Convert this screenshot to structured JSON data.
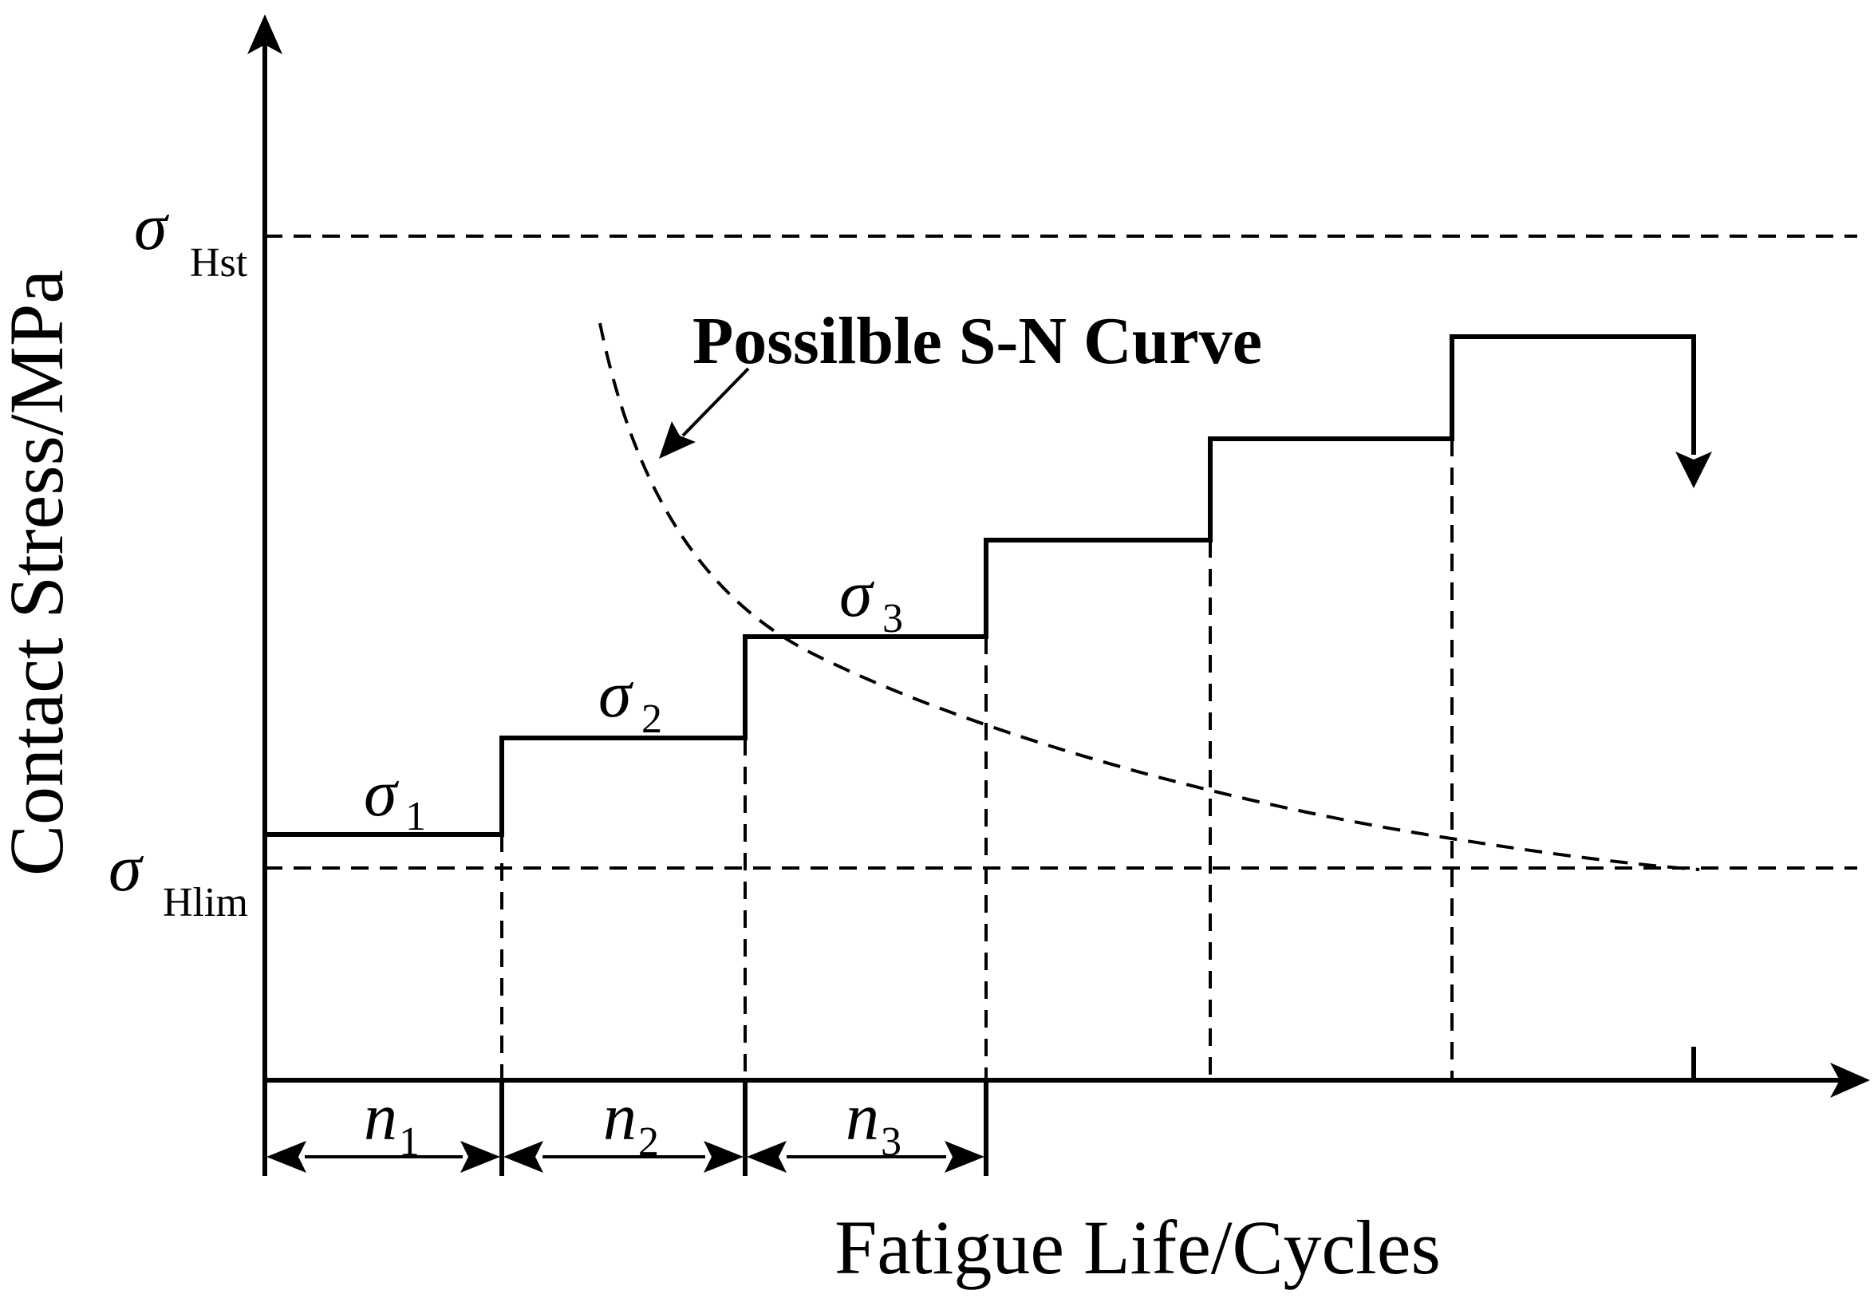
{
  "axes": {
    "y_label": "Contact Stress/MPa",
    "x_label": "Fatigue Life/Cycles"
  },
  "thresholds": {
    "upper": {
      "symbol": "σ",
      "subscript": "Hst"
    },
    "lower": {
      "symbol": "σ",
      "subscript": "Hlim"
    }
  },
  "callout": {
    "text": "Possilble S-N Curve"
  },
  "steps": [
    {
      "symbol": "σ",
      "subscript": "1"
    },
    {
      "symbol": "σ",
      "subscript": "2"
    },
    {
      "symbol": "σ",
      "subscript": "3"
    }
  ],
  "intervals": [
    {
      "symbol": "n",
      "subscript": "1"
    },
    {
      "symbol": "n",
      "subscript": "2"
    },
    {
      "symbol": "n",
      "subscript": "3"
    }
  ]
}
